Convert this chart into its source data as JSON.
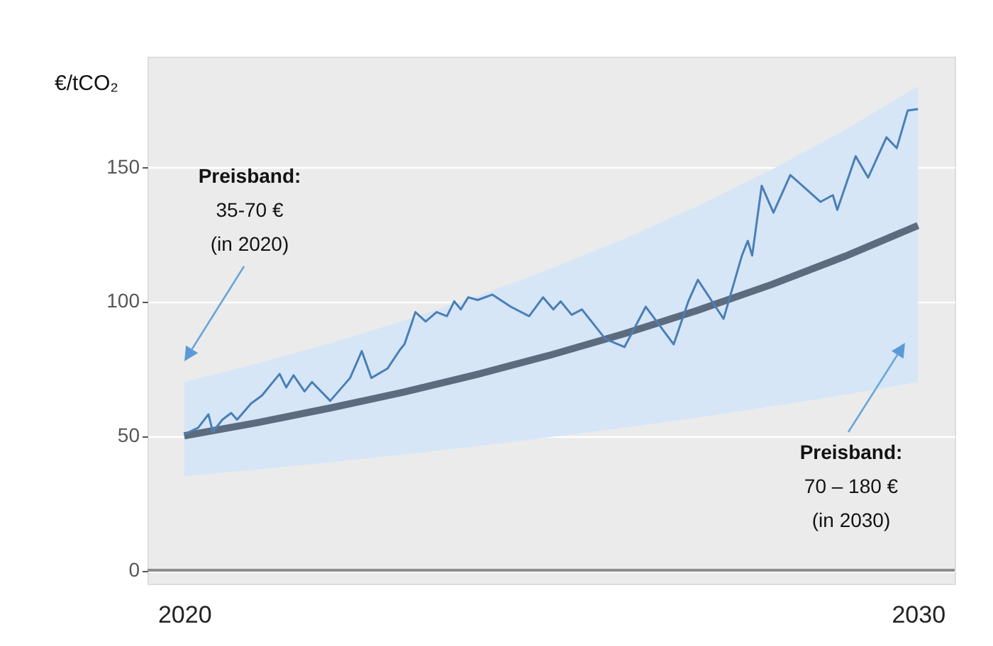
{
  "chart_data": {
    "type": "line",
    "ylabel": "€/tCO₂",
    "xlim": [
      2019.5,
      2030.5
    ],
    "xticks": [
      2020,
      2030
    ],
    "ylim": [
      -5,
      191
    ],
    "yticks": [
      0,
      50,
      100,
      150
    ],
    "grid": "y",
    "series": [
      {
        "color": "#5d6b7e",
        "x": [
          2020,
          2021,
          2022,
          2023,
          2024,
          2025,
          2026,
          2027,
          2028,
          2029,
          2030
        ],
        "values": [
          50,
          54.9,
          60.4,
          66.3,
          72.9,
          80.1,
          88,
          96.7,
          106.2,
          116.7,
          128.2
        ],
        "lower": [
          35,
          37.5,
          40.2,
          43.1,
          46.2,
          49.5,
          53,
          56.8,
          60.9,
          65.3,
          70
        ],
        "upper": [
          70,
          76.9,
          84.5,
          92.9,
          102.1,
          112.2,
          123.3,
          135.5,
          148.9,
          163.7,
          180
        ]
      },
      {
        "color": "#4a7fb5",
        "x": [
          2020,
          2020.19,
          2020.33,
          2020.39,
          2020.52,
          2020.64,
          2020.72,
          2020.91,
          2021.06,
          2021.3,
          2021.39,
          2021.49,
          2021.64,
          2021.74,
          2021.99,
          2022.26,
          2022.42,
          2022.55,
          2022.77,
          2022.94,
          2023,
          2023.09,
          2023.15,
          2023.29,
          2023.44,
          2023.58,
          2023.68,
          2023.77,
          2023.87,
          2024,
          2024.2,
          2024.45,
          2024.7,
          2024.89,
          2025.03,
          2025.13,
          2025.28,
          2025.42,
          2025.74,
          2026,
          2026.29,
          2026.48,
          2026.67,
          2026.87,
          2027,
          2027.35,
          2027.6,
          2027.68,
          2027.74,
          2027.87,
          2028.03,
          2028.26,
          2028.67,
          2028.84,
          2028.9,
          2029.15,
          2029.32,
          2029.57,
          2029.71,
          2029.86,
          2030
        ],
        "values": [
          50.5,
          53,
          58,
          51.5,
          56,
          58.5,
          56,
          62,
          65,
          73,
          68,
          72.5,
          66.5,
          70,
          63,
          71.5,
          81.5,
          71.5,
          75,
          82,
          84,
          91,
          96,
          92.5,
          96,
          94.5,
          100,
          97,
          101.5,
          100.5,
          102.5,
          98,
          94.5,
          101.5,
          97,
          100,
          95,
          97,
          86,
          83,
          98,
          91,
          84,
          100,
          108,
          93.5,
          117,
          122.5,
          117,
          143,
          133,
          147,
          137,
          139.5,
          134,
          154,
          146,
          161,
          157,
          171,
          171.5
        ]
      }
    ],
    "ref_lines": [
      {
        "axis": "y",
        "value": 0,
        "color": "#8c8c8c"
      }
    ],
    "annotations": [
      "Preisband:\n35-70 €\n(in 2020)",
      "Preisband:\n70 – 180 €\n(in 2030)"
    ]
  }
}
